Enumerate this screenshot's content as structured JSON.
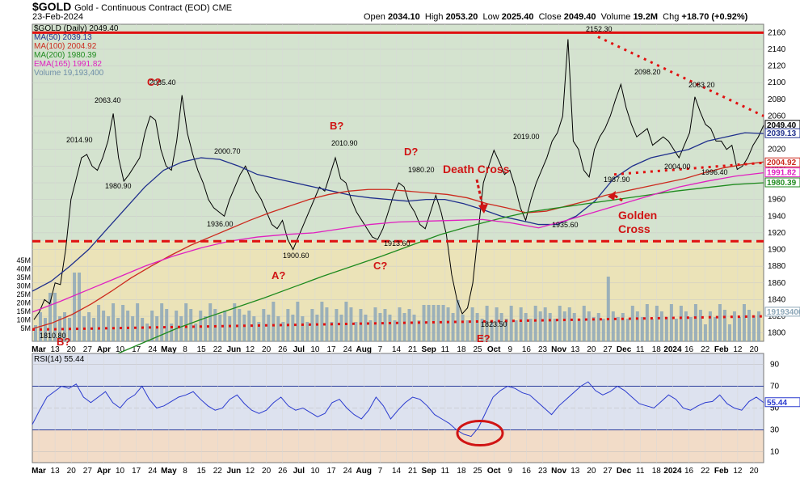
{
  "header": {
    "symbol": "$GOLD",
    "name": "Gold - Continuous Contract (EOD) CME",
    "date": "23-Feb-2024",
    "open_label": "Open",
    "open": "2034.10",
    "high_label": "High",
    "high": "2053.20",
    "low_label": "Low",
    "low": "2025.40",
    "close_label": "Close",
    "close": "2049.40",
    "volume_label": "Volume",
    "volume": "19.2M",
    "chg_label": "Chg",
    "chg": "+18.70 (+0.92%)"
  },
  "legend": [
    {
      "text": "$GOLD (Daily) 2049.40",
      "color": "#000000"
    },
    {
      "text": "MA(50) 2039.13",
      "color": "#1f2f8c"
    },
    {
      "text": "MA(100) 2004.92",
      "color": "#cc2a1e"
    },
    {
      "text": "MA(200) 1980.39",
      "color": "#1e8a1e"
    },
    {
      "text": "EMA(165) 1991.82",
      "color": "#e020c0"
    },
    {
      "text": "Volume 19,193,400",
      "color": "#6f8fa8"
    }
  ],
  "chart_data": [
    {
      "type": "line",
      "title": "$GOLD (Daily)",
      "ylim": [
        1790,
        2170
      ],
      "yticks": [
        1800,
        1820,
        1840,
        1860,
        1880,
        1900,
        1920,
        1940,
        1960,
        1980,
        2000,
        2020,
        2040,
        2060,
        2080,
        2100,
        2120,
        2140,
        2160
      ],
      "vol_ticks": [
        "5M",
        "10M",
        "15M",
        "20M",
        "25M",
        "30M",
        "35M",
        "40M",
        "45M"
      ],
      "xticks": [
        {
          "label": "Mar",
          "bold": true
        },
        {
          "label": "13"
        },
        {
          "label": "20"
        },
        {
          "label": "27"
        },
        {
          "label": "Apr",
          "bold": true
        },
        {
          "label": "10"
        },
        {
          "label": "17"
        },
        {
          "label": "24"
        },
        {
          "label": "May",
          "bold": true
        },
        {
          "label": "8"
        },
        {
          "label": "15"
        },
        {
          "label": "22"
        },
        {
          "label": "Jun",
          "bold": true
        },
        {
          "label": "12"
        },
        {
          "label": "20"
        },
        {
          "label": "26"
        },
        {
          "label": "Jul",
          "bold": true
        },
        {
          "label": "10"
        },
        {
          "label": "17"
        },
        {
          "label": "24"
        },
        {
          "label": "Aug",
          "bold": true
        },
        {
          "label": "7"
        },
        {
          "label": "14"
        },
        {
          "label": "21"
        },
        {
          "label": "Sep",
          "bold": true
        },
        {
          "label": "11"
        },
        {
          "label": "18"
        },
        {
          "label": "25"
        },
        {
          "label": "Oct",
          "bold": true
        },
        {
          "label": "9"
        },
        {
          "label": "16"
        },
        {
          "label": "23"
        },
        {
          "label": "Nov",
          "bold": true
        },
        {
          "label": "13"
        },
        {
          "label": "20"
        },
        {
          "label": "27"
        },
        {
          "label": "Dec",
          "bold": true
        },
        {
          "label": "11"
        },
        {
          "label": "18"
        },
        {
          "label": "2024",
          "bold": true
        },
        {
          "label": "16"
        },
        {
          "label": "22"
        },
        {
          "label": "Feb",
          "bold": true
        },
        {
          "label": "12"
        },
        {
          "label": "20"
        }
      ],
      "series": [
        {
          "name": "$GOLD",
          "values": [
            1816,
            1825,
            1840,
            1835,
            1860,
            1858,
            1900,
            1960,
            1985,
            2010,
            2014,
            2000,
            1995,
            2010,
            2030,
            2063,
            2010,
            1982,
            1990,
            2000,
            2010,
            2040,
            2060,
            2055,
            2020,
            2000,
            1995,
            2030,
            2085,
            2040,
            2015,
            1995,
            1980,
            1960,
            1950,
            1945,
            1940,
            1960,
            1975,
            1990,
            2000,
            1985,
            1970,
            1960,
            1945,
            1930,
            1925,
            1935,
            1912,
            1900,
            1915,
            1930,
            1945,
            1960,
            1975,
            1970,
            1990,
            2010,
            1985,
            1980,
            1960,
            1945,
            1935,
            1925,
            1915,
            1912,
            1925,
            1945,
            1965,
            1980,
            1975,
            1955,
            1945,
            1930,
            1925,
            1945,
            1965,
            1945,
            1918,
            1870,
            1840,
            1823,
            1830,
            1860,
            1920,
            1980,
            2000,
            2019,
            2005,
            1990,
            1995,
            1975,
            1950,
            1935,
            1960,
            1980,
            1995,
            2010,
            2030,
            2040,
            2060,
            2152,
            2030,
            2020,
            1995,
            1987,
            2020,
            2035,
            2045,
            2060,
            2080,
            2098,
            2070,
            2050,
            2035,
            2040,
            2045,
            2025,
            2030,
            2035,
            2030,
            2020,
            2010,
            2025,
            2040,
            2083,
            2065,
            2050,
            2045,
            2030,
            2030,
            2020,
            2025,
            1996,
            2000,
            2010,
            2025,
            2035,
            2049
          ]
        },
        {
          "name": "MA(50)",
          "values": [
            1850,
            1862,
            1880,
            1900,
            1925,
            1950,
            1975,
            1995,
            2005,
            2010,
            2008,
            2000,
            1990,
            1985,
            1980,
            1975,
            1970,
            1965,
            1962,
            1960,
            1958,
            1960,
            1960,
            1955,
            1948,
            1940,
            1935,
            1930,
            1930,
            1940,
            1958,
            1985,
            2000,
            2010,
            2015,
            2020,
            2030,
            2035,
            2040,
            2039
          ]
        },
        {
          "name": "MA(100)",
          "values": [
            1805,
            1812,
            1822,
            1835,
            1850,
            1866,
            1880,
            1893,
            1905,
            1915,
            1925,
            1935,
            1944,
            1952,
            1960,
            1966,
            1970,
            1972,
            1972,
            1970,
            1968,
            1966,
            1962,
            1955,
            1950,
            1944,
            1946,
            1952,
            1958,
            1965,
            1970,
            1975,
            1980,
            1985,
            1992,
            1998,
            2002,
            2005
          ]
        },
        {
          "name": "MA(200)",
          "values": [
            1775,
            1790,
            1805,
            1818,
            1830,
            1842,
            1855,
            1868,
            1880,
            1892,
            1905,
            1918,
            1928,
            1937,
            1945,
            1950,
            1955,
            1960,
            1965,
            1970,
            1974,
            1978,
            1980
          ]
        },
        {
          "name": "EMA(165)",
          "values": [
            1825,
            1838,
            1852,
            1866,
            1880,
            1892,
            1902,
            1910,
            1915,
            1918,
            1920,
            1925,
            1930,
            1933,
            1934,
            1935,
            1936,
            1932,
            1926,
            1935,
            1945,
            1955,
            1965,
            1975,
            1982,
            1988,
            1992
          ]
        }
      ]
    },
    {
      "type": "line",
      "title": "RSI(14) 55.44",
      "ylim": [
        0,
        100
      ],
      "yticks": [
        10,
        30,
        50,
        70,
        90
      ],
      "xticks": [
        "Mar",
        "13",
        "20",
        "27",
        "Apr",
        "10",
        "17",
        "24",
        "May",
        "8",
        "15",
        "22",
        "Jun",
        "12",
        "20",
        "26",
        "Jul",
        "10",
        "17",
        "24",
        "Aug",
        "7",
        "14",
        "21",
        "Sep",
        "11",
        "18",
        "25",
        "Oct",
        "9",
        "16",
        "23",
        "Nov",
        "13",
        "20",
        "27",
        "Dec",
        "11",
        "18",
        "2024",
        "16",
        "22",
        "Feb",
        "12",
        "20"
      ],
      "series": [
        {
          "name": "RSI(14)",
          "values": [
            35,
            48,
            60,
            65,
            70,
            68,
            72,
            60,
            55,
            60,
            65,
            55,
            50,
            58,
            62,
            70,
            58,
            50,
            52,
            56,
            60,
            62,
            65,
            58,
            52,
            48,
            50,
            58,
            62,
            54,
            48,
            45,
            48,
            55,
            60,
            52,
            48,
            50,
            46,
            42,
            45,
            55,
            58,
            50,
            44,
            40,
            48,
            60,
            52,
            40,
            48,
            55,
            60,
            58,
            52,
            44,
            40,
            36,
            30,
            26,
            24,
            32,
            46,
            60,
            66,
            70,
            68,
            64,
            62,
            56,
            50,
            44,
            52,
            58,
            64,
            70,
            74,
            66,
            62,
            65,
            70,
            66,
            60,
            54,
            52,
            50,
            56,
            62,
            58,
            50,
            48,
            52,
            55,
            56,
            62,
            54,
            50,
            48,
            56,
            60,
            55
          ]
        }
      ]
    }
  ],
  "annotations": {
    "price_labels": [
      "1810.80",
      "2014.90",
      "2063.40",
      "1980.90",
      "2085.40",
      "2000.70",
      "1936.00",
      "1900.60",
      "2010.90",
      "1913.60",
      "1980.20",
      "2019.00",
      "1823.50",
      "1935.60",
      "2152.30",
      "1987.90",
      "2098.20",
      "2083.20",
      "2004.00",
      "1996.40"
    ],
    "waves": [
      "B?",
      "C?",
      "A?",
      "B?",
      "C?",
      "D?",
      "E?"
    ],
    "death_cross": "Death Cross",
    "golden_cross": "Golden Cross",
    "right_labels": [
      "2049.40",
      "2039.13",
      "2004.92",
      "1991.82",
      "1980.39",
      "19193400"
    ],
    "rsi_right": "55.44"
  }
}
